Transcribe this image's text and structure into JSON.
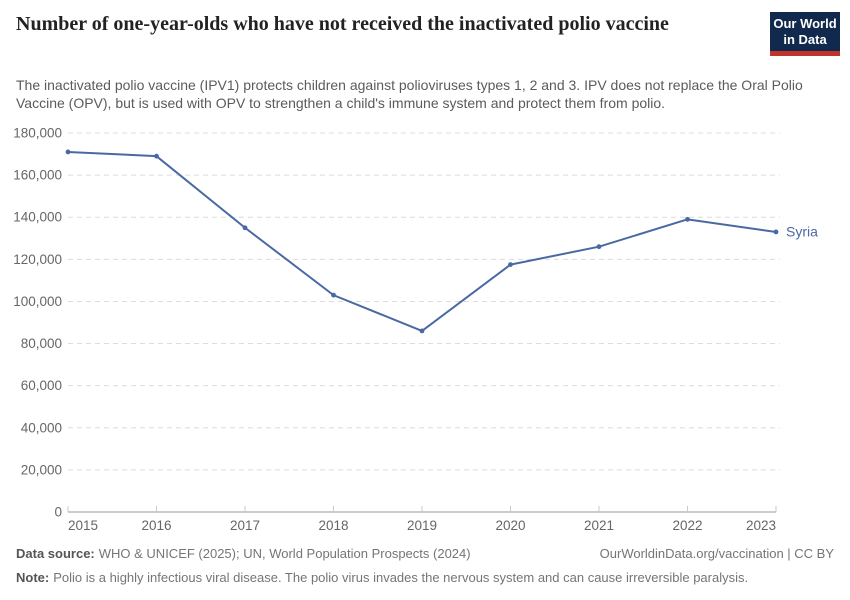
{
  "header": {
    "title": "Number of one-year-olds who have not received the inactivated polio vaccine",
    "subtitle": "The inactivated polio vaccine (IPV1) protects children against polioviruses types 1, 2 and 3. IPV does not replace the Oral Polio Vaccine (OPV), but is used with OPV to strengthen a child's immune system and protect them from polio.",
    "logo": {
      "line1": "Our World",
      "line2": "in Data"
    }
  },
  "chart_data": {
    "type": "line",
    "title": "Number of one-year-olds who have not received the inactivated polio vaccine",
    "x": [
      2015,
      2016,
      2017,
      2018,
      2019,
      2020,
      2021,
      2022,
      2023
    ],
    "series": [
      {
        "name": "Syria",
        "color": "#4a69a3",
        "values": [
          171000,
          169000,
          135000,
          103000,
          86000,
          117500,
          126000,
          139000,
          133000
        ]
      }
    ],
    "end_label": "Syria",
    "xlabel": "",
    "ylabel": "",
    "ylim": [
      0,
      180000
    ],
    "yticks": [
      0,
      20000,
      40000,
      60000,
      80000,
      100000,
      120000,
      140000,
      160000,
      180000
    ],
    "grid": "horizontal-dashed",
    "legend": "line-end-label"
  },
  "footer": {
    "source_label": "Data source:",
    "source_text": "WHO & UNICEF (2025); UN, World Population Prospects (2024)",
    "credit": "OurWorldinData.org/vaccination | CC BY",
    "note_label": "Note:",
    "note_text": "Polio is a highly infectious viral disease. The polio virus invades the nervous system and can cause irreversible paralysis."
  },
  "colors": {
    "line": "#4a69a3",
    "grid": "#dcdcdc",
    "axis": "#9a9a9a",
    "tick": "#c9c9c9",
    "tick_label": "#666666",
    "title": "#222222",
    "subtitle": "#5b5b5b",
    "logo_bg": "#11294d",
    "logo_bar": "#c0342b"
  }
}
